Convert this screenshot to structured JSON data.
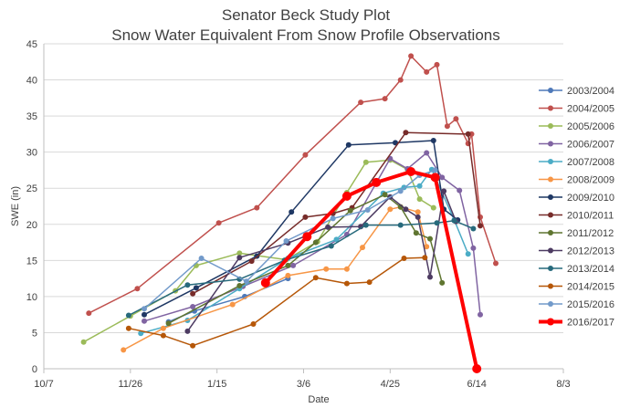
{
  "chart_data": {
    "type": "line",
    "title": "Senator Beck Study Plot",
    "subtitle": "Snow Water Equivalent From Snow Profile Observations",
    "xlabel": "Date",
    "ylabel": "SWE (in)",
    "x_ticks": [
      "10/7",
      "11/26",
      "1/15",
      "3/6",
      "4/25",
      "6/14",
      "8/3"
    ],
    "y_ticks": [
      "0",
      "5",
      "10",
      "15",
      "20",
      "25",
      "30",
      "35",
      "40",
      "45"
    ],
    "ylim": [
      0,
      45
    ],
    "grid": "horizontal",
    "legend_position": "right",
    "series": [
      {
        "name": "2003/2004",
        "color": "#4e79b9",
        "width": 1.5,
        "x": [
          "2016-12-18",
          "2017-01-02",
          "2017-01-31",
          "2017-02-25"
        ],
        "y": [
          6.5,
          8.0,
          10.0,
          12.5
        ]
      },
      {
        "name": "2004/2005",
        "color": "#c0504d",
        "width": 1.5,
        "x": [
          "2016-11-02",
          "2016-11-30",
          "2017-01-16",
          "2017-02-07",
          "2017-03-07",
          "2017-04-08",
          "2017-04-22",
          "2017-05-01",
          "2017-05-07",
          "2017-05-16",
          "2017-05-22",
          "2017-05-28",
          "2017-06-02",
          "2017-06-09",
          "2017-06-11",
          "2017-06-16",
          "2017-06-25"
        ],
        "y": [
          7.7,
          11.1,
          20.2,
          22.3,
          29.6,
          36.9,
          37.4,
          40.0,
          43.3,
          41.1,
          42.1,
          33.6,
          34.6,
          31.2,
          32.5,
          21.0,
          14.6
        ]
      },
      {
        "name": "2005/2006",
        "color": "#9bbb59",
        "width": 1.5,
        "x": [
          "2016-10-30",
          "2016-11-26",
          "2016-12-22",
          "2017-01-03",
          "2017-01-28",
          "2017-02-24",
          "2017-03-14",
          "2017-03-31",
          "2017-04-11",
          "2017-04-25",
          "2017-05-05",
          "2017-05-12",
          "2017-05-20"
        ],
        "y": [
          3.7,
          7.3,
          10.8,
          14.3,
          16.0,
          15.1,
          17.6,
          24.4,
          28.6,
          28.9,
          27.6,
          23.5,
          22.3
        ]
      },
      {
        "name": "2006/2007",
        "color": "#8064a2",
        "width": 1.5,
        "x": [
          "2016-12-04",
          "2017-01-01",
          "2017-01-30",
          "2017-02-28",
          "2017-03-31",
          "2017-04-25",
          "2017-05-05",
          "2017-05-16",
          "2017-05-25",
          "2017-06-04",
          "2017-06-12",
          "2017-06-16"
        ],
        "y": [
          6.6,
          8.6,
          11.4,
          14.3,
          18.6,
          29.1,
          27.7,
          29.9,
          26.5,
          24.7,
          16.7,
          7.5
        ]
      },
      {
        "name": "2007/2008",
        "color": "#4bacc6",
        "width": 1.5,
        "x": [
          "2016-12-02",
          "2016-12-29",
          "2017-01-28",
          "2017-02-25",
          "2017-03-25",
          "2017-04-21",
          "2017-05-03",
          "2017-05-12",
          "2017-05-19",
          "2017-06-01",
          "2017-06-09"
        ],
        "y": [
          4.9,
          6.7,
          11.1,
          15.3,
          17.9,
          24.3,
          25.1,
          25.3,
          27.6,
          20.6,
          15.9
        ]
      },
      {
        "name": "2008/2009",
        "color": "#f79646",
        "width": 1.5,
        "x": [
          "2016-11-22",
          "2016-12-15",
          "2017-01-24",
          "2017-02-25",
          "2017-03-19",
          "2017-03-31",
          "2017-04-09",
          "2017-04-25",
          "2017-05-01",
          "2017-05-11",
          "2017-05-16"
        ],
        "y": [
          2.6,
          5.6,
          8.9,
          12.9,
          13.8,
          13.8,
          16.8,
          22.1,
          22.4,
          21.7,
          16.9
        ]
      },
      {
        "name": "2009/2010",
        "color": "#1f3864",
        "width": 1.5,
        "x": [
          "2016-12-04",
          "2017-01-03",
          "2017-02-07",
          "2017-02-27",
          "2017-04-01",
          "2017-04-28",
          "2017-05-20",
          "2017-05-26",
          "2017-06-03"
        ],
        "y": [
          7.5,
          11.2,
          15.6,
          21.7,
          31.0,
          31.3,
          31.6,
          22.1,
          20.6
        ]
      },
      {
        "name": "2010/2011",
        "color": "#772c2a",
        "width": 1.5,
        "x": [
          "2017-01-01",
          "2017-02-04",
          "2017-03-07",
          "2017-03-23",
          "2017-04-03",
          "2017-05-04",
          "2017-06-09",
          "2017-06-16"
        ],
        "y": [
          10.4,
          14.9,
          21.0,
          21.5,
          22.3,
          32.7,
          32.5,
          19.8
        ]
      },
      {
        "name": "2011/2012",
        "color": "#5f7530",
        "width": 1.5,
        "x": [
          "2016-12-18",
          "2017-01-28",
          "2017-02-25",
          "2017-03-13",
          "2017-04-02",
          "2017-04-22",
          "2017-05-01",
          "2017-05-10",
          "2017-05-18",
          "2017-05-25"
        ],
        "y": [
          6.3,
          11.5,
          14.3,
          17.5,
          21.9,
          24.1,
          22.4,
          18.8,
          18.0,
          11.9
        ]
      },
      {
        "name": "2012/2013",
        "color": "#4d3b62",
        "width": 1.5,
        "x": [
          "2016-12-29",
          "2017-01-28",
          "2017-02-25",
          "2017-03-20",
          "2017-04-08",
          "2017-04-25",
          "2017-05-04",
          "2017-05-11",
          "2017-05-18",
          "2017-05-26",
          "2017-06-02"
        ],
        "y": [
          5.2,
          15.4,
          17.4,
          19.6,
          19.7,
          23.8,
          22.1,
          21.0,
          12.7,
          24.6,
          20.4
        ]
      },
      {
        "name": "2013/2014",
        "color": "#276a7c",
        "width": 1.5,
        "x": [
          "2016-11-25",
          "2016-12-29",
          "2017-01-28",
          "2017-02-23",
          "2017-03-22",
          "2017-04-11",
          "2017-05-01",
          "2017-05-22",
          "2017-06-01",
          "2017-06-12"
        ],
        "y": [
          7.4,
          11.6,
          12.4,
          15.0,
          17.0,
          19.9,
          19.9,
          20.2,
          20.5,
          19.4
        ]
      },
      {
        "name": "2014/2015",
        "color": "#b65708",
        "width": 1.5,
        "x": [
          "2016-11-25",
          "2016-12-15",
          "2017-01-01",
          "2017-02-05",
          "2017-03-13",
          "2017-03-31",
          "2017-04-13",
          "2017-05-03",
          "2017-05-15"
        ],
        "y": [
          5.6,
          4.6,
          3.2,
          6.2,
          12.6,
          11.8,
          12.0,
          15.3,
          15.4
        ]
      },
      {
        "name": "2015/2016",
        "color": "#729aca",
        "width": 1.5,
        "x": [
          "2016-12-04",
          "2017-01-06",
          "2017-02-01",
          "2017-02-24",
          "2017-03-23",
          "2017-04-12",
          "2017-05-01",
          "2017-05-12",
          "2017-05-21"
        ],
        "y": [
          8.3,
          15.3,
          12.1,
          17.7,
          20.8,
          22.0,
          24.6,
          26.8,
          27.5
        ]
      },
      {
        "name": "2016/2017",
        "color": "#ff0000",
        "width": 4,
        "x": [
          "2017-02-12",
          "2017-03-08",
          "2017-03-31",
          "2017-04-17",
          "2017-05-07",
          "2017-05-21",
          "2017-06-14"
        ],
        "y": [
          11.9,
          18.3,
          23.9,
          25.8,
          27.3,
          26.5,
          0.0
        ]
      }
    ]
  }
}
